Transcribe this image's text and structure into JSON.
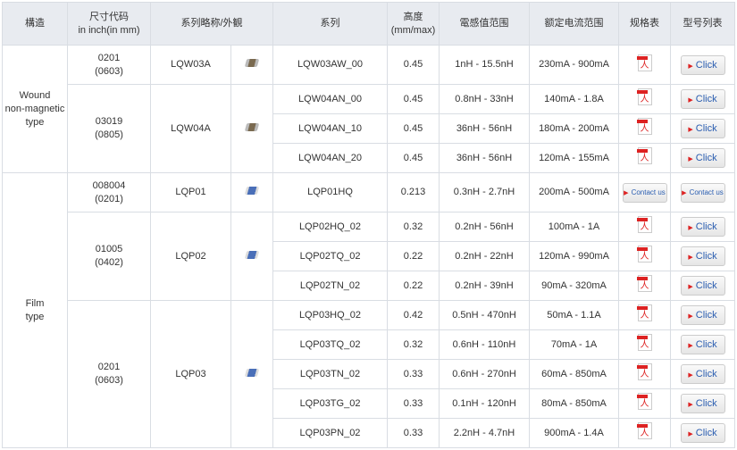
{
  "headers": [
    "構造",
    "尺寸代码\nin inch(in mm)",
    "系列略称/外観",
    "系列",
    "高度\n(mm/max)",
    "電感值范围",
    "额定电流范围",
    "规格表",
    "型号列表"
  ],
  "groups": [
    {
      "structure": "Wound\nnon-magnetic\ntype",
      "sizes": [
        {
          "code": "0201\n(0603)",
          "abbr": "LQW03A",
          "image": "wound-chip-image",
          "rows": [
            [
              "LQW03AW_00",
              "0.45",
              "1nH - 15.5nH",
              "230mA - 900mA"
            ]
          ]
        },
        {
          "code": "03019\n(0805)",
          "abbr": "LQW04A",
          "image": "wound-chip-image",
          "rows": [
            [
              "LQW04AN_00",
              "0.45",
              "0.8nH - 33nH",
              "140mA -  1.8A"
            ],
            [
              "LQW04AN_10",
              "0.45",
              "36nH - 56nH",
              "180mA - 200mA"
            ],
            [
              "LQW04AN_20",
              "0.45",
              "36nH - 56nH",
              "120mA - 155mA"
            ]
          ]
        }
      ]
    },
    {
      "structure": "Film\ntype",
      "sizes": [
        {
          "code": "008004\n(0201)",
          "abbr": "LQP01",
          "image": "film-chip-image",
          "contact": true,
          "rows": [
            [
              "LQP01HQ",
              "0.213",
              "0.3nH - 2.7nH",
              "200mA - 500mA"
            ]
          ]
        },
        {
          "code": "01005\n(0402)",
          "abbr": "LQP02",
          "image": "film-chip-image",
          "rows": [
            [
              "LQP02HQ_02",
              "0.32",
              "0.2nH - 56nH",
              "100mA -  1A"
            ],
            [
              "LQP02TQ_02",
              "0.22",
              "0.2nH - 22nH",
              "120mA - 990mA"
            ],
            [
              "LQP02TN_02",
              "0.22",
              "0.2nH - 39nH",
              "90mA - 320mA"
            ]
          ]
        },
        {
          "code": "0201\n(0603)",
          "abbr": "LQP03",
          "image": "film-chip-image",
          "rows": [
            [
              "LQP03HQ_02",
              "0.42",
              "0.5nH - 470nH",
              "50mA -  1.1A"
            ],
            [
              "LQP03TQ_02",
              "0.32",
              "0.6nH - 110nH",
              "70mA -  1A"
            ],
            [
              "LQP03TN_02",
              "0.33",
              "0.6nH - 270nH",
              "60mA - 850mA"
            ],
            [
              "LQP03TG_02",
              "0.33",
              "0.1nH - 120nH",
              "80mA - 850mA"
            ],
            [
              "LQP03PN_02",
              "0.33",
              "2.2nH - 4.7nH",
              "900mA - 1.4A"
            ]
          ]
        }
      ]
    }
  ],
  "click_label": "Click",
  "contact_label": "Contact us",
  "spec_icon": "pdf-icon"
}
